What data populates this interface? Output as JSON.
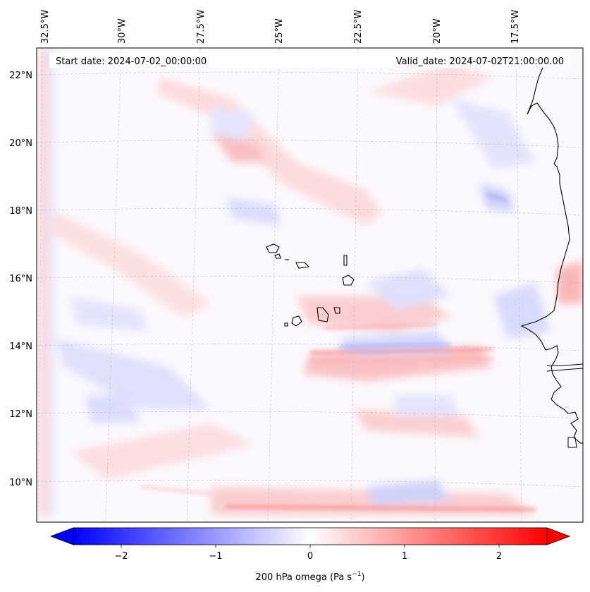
{
  "map": {
    "start_date_label": "Start date: 2024-07-02_00:00:00",
    "valid_date_label": "Valid_date: 2024-07-02T21:00:00.00",
    "longitude_labels": [
      "32.5°W",
      "30°W",
      "27.5°W",
      "25°W",
      "22.5°W",
      "20°W",
      "17.5°W"
    ],
    "latitude_labels": [
      "22°N",
      "20°N",
      "18°N",
      "16°N",
      "14°N",
      "12°N",
      "10°N"
    ],
    "colorbar": {
      "ticks": [
        "−2",
        "−1",
        "0",
        "1",
        "2"
      ],
      "label": "200 hPa omega (Pa s",
      "label_sup": "−1",
      "label_end": ")",
      "min_color": "#0000ff",
      "mid_color": "#ffffff",
      "max_color": "#ff0000"
    }
  }
}
